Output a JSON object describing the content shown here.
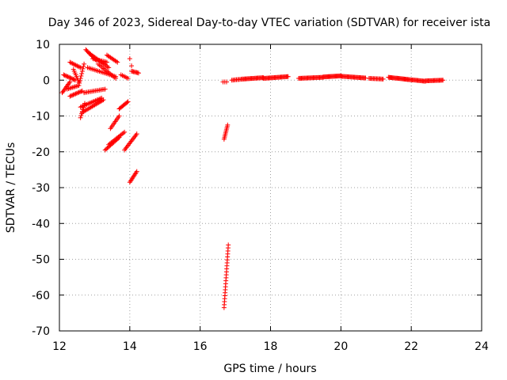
{
  "chart_data": {
    "type": "scatter",
    "title": "Day 346 of 2023, Sidereal Day-to-day VTEC variation (SDTVAR) for receiver ista",
    "xlabel": "GPS time / hours",
    "ylabel": "SDTVAR / TECUs",
    "xlim": [
      12,
      24
    ],
    "ylim": [
      -70,
      10
    ],
    "xticks": [
      12,
      14,
      16,
      18,
      20,
      22,
      24
    ],
    "yticks": [
      -70,
      -60,
      -50,
      -40,
      -30,
      -20,
      -10,
      0,
      10
    ],
    "grid": true,
    "marker": "+",
    "color": "#ff0000",
    "series": [
      {
        "name": "SDTVAR",
        "segments": [
          {
            "from": [
              12.12,
              1.5
            ],
            "to": [
              12.45,
              0.0
            ],
            "n": 12
          },
          {
            "from": [
              12.08,
              -3.5
            ],
            "to": [
              12.3,
              -0.5
            ],
            "n": 10
          },
          {
            "from": [
              12.22,
              -2.5
            ],
            "to": [
              12.55,
              -1.5
            ],
            "n": 10
          },
          {
            "from": [
              12.3,
              5.0
            ],
            "to": [
              12.6,
              3.5
            ],
            "n": 10
          },
          {
            "from": [
              12.4,
              3.0
            ],
            "to": [
              12.55,
              -0.5
            ],
            "n": 8
          },
          {
            "from": [
              12.3,
              -4.5
            ],
            "to": [
              12.65,
              -3.0
            ],
            "n": 12
          },
          {
            "from": [
              12.55,
              -1.5
            ],
            "to": [
              12.7,
              4.5
            ],
            "n": 10
          },
          {
            "from": [
              12.6,
              -10.5
            ],
            "to": [
              12.72,
              -6.5
            ],
            "n": 8
          },
          {
            "from": [
              12.6,
              -7.5
            ],
            "to": [
              13.2,
              -5.0
            ],
            "n": 18
          },
          {
            "from": [
              12.65,
              -9.0
            ],
            "to": [
              13.25,
              -5.5
            ],
            "n": 18
          },
          {
            "from": [
              12.7,
              -3.5
            ],
            "to": [
              13.3,
              -2.5
            ],
            "n": 16
          },
          {
            "from": [
              12.75,
              8.5
            ],
            "to": [
              13.05,
              5.5
            ],
            "n": 12
          },
          {
            "from": [
              12.85,
              7.5
            ],
            "to": [
              13.4,
              3.5
            ],
            "n": 16
          },
          {
            "from": [
              12.95,
              6.0
            ],
            "to": [
              13.35,
              5.0
            ],
            "n": 12
          },
          {
            "from": [
              12.8,
              3.5
            ],
            "to": [
              13.6,
              1.0
            ],
            "n": 20
          },
          {
            "from": [
              13.1,
              4.5
            ],
            "to": [
              13.6,
              0.5
            ],
            "n": 14
          },
          {
            "from": [
              13.35,
              7.0
            ],
            "to": [
              13.65,
              5.0
            ],
            "n": 10
          },
          {
            "from": [
              13.75,
              1.5
            ],
            "to": [
              13.95,
              0.5
            ],
            "n": 6
          },
          {
            "from": [
              14.0,
              6.0
            ],
            "to": [
              14.05,
              4.0
            ],
            "n": 2
          },
          {
            "from": [
              14.05,
              2.5
            ],
            "to": [
              14.25,
              2.0
            ],
            "n": 8
          },
          {
            "from": [
              13.3,
              -19.5
            ],
            "to": [
              13.7,
              -16.0
            ],
            "n": 14
          },
          {
            "from": [
              13.4,
              -18.0
            ],
            "to": [
              13.85,
              -14.5
            ],
            "n": 14
          },
          {
            "from": [
              13.45,
              -13.5
            ],
            "to": [
              13.7,
              -10.0
            ],
            "n": 10
          },
          {
            "from": [
              13.7,
              -8.0
            ],
            "to": [
              13.95,
              -6.0
            ],
            "n": 10
          },
          {
            "from": [
              13.85,
              -19.5
            ],
            "to": [
              14.2,
              -15.0
            ],
            "n": 14
          },
          {
            "from": [
              14.0,
              -28.5
            ],
            "to": [
              14.2,
              -25.5
            ],
            "n": 10
          },
          {
            "from": [
              16.65,
              -0.5
            ],
            "to": [
              16.75,
              -0.5
            ],
            "n": 3
          },
          {
            "from": [
              16.9,
              0.0
            ],
            "to": [
              17.2,
              0.3
            ],
            "n": 10
          },
          {
            "from": [
              17.2,
              0.3
            ],
            "to": [
              17.8,
              0.7
            ],
            "n": 24
          },
          {
            "from": [
              17.8,
              0.5
            ],
            "to": [
              18.5,
              1.0
            ],
            "n": 28
          },
          {
            "from": [
              18.8,
              0.5
            ],
            "to": [
              19.5,
              0.8
            ],
            "n": 28
          },
          {
            "from": [
              19.5,
              0.9
            ],
            "to": [
              20.0,
              1.2
            ],
            "n": 22
          },
          {
            "from": [
              20.0,
              1.1
            ],
            "to": [
              20.7,
              0.6
            ],
            "n": 28
          },
          {
            "from": [
              20.8,
              0.5
            ],
            "to": [
              21.2,
              0.3
            ],
            "n": 14
          },
          {
            "from": [
              21.35,
              0.8
            ],
            "to": [
              21.9,
              0.2
            ],
            "n": 24
          },
          {
            "from": [
              21.9,
              0.2
            ],
            "to": [
              22.4,
              -0.3
            ],
            "n": 20
          },
          {
            "from": [
              22.4,
              -0.2
            ],
            "to": [
              22.9,
              0.0
            ],
            "n": 20
          },
          {
            "from": [
              16.68,
              -16.5
            ],
            "to": [
              16.78,
              -12.5
            ],
            "n": 10
          },
          {
            "from": [
              16.68,
              -63.5
            ],
            "to": [
              16.8,
              -46.0
            ],
            "n": 22
          }
        ]
      }
    ]
  }
}
